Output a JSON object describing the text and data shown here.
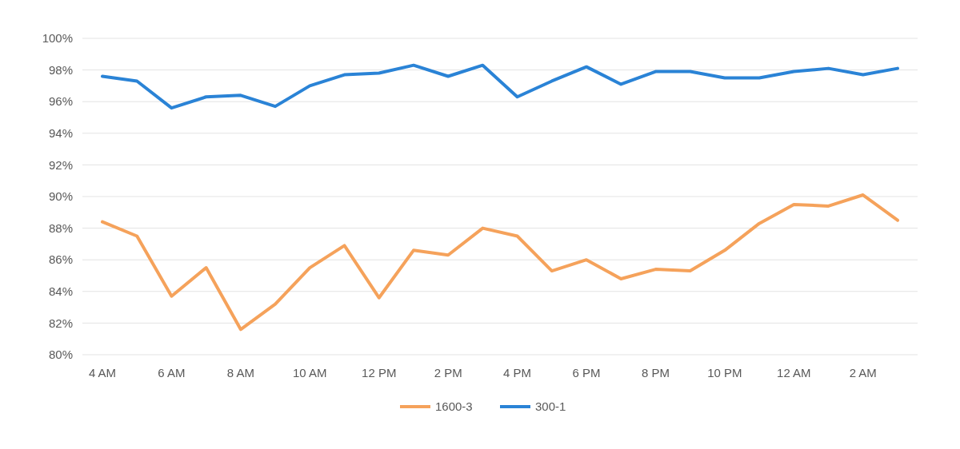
{
  "chart_data": {
    "type": "line",
    "categories": [
      "4 AM",
      null,
      "6 AM",
      null,
      "8 AM",
      null,
      "10 AM",
      null,
      "12 PM",
      null,
      "2 PM",
      null,
      "4 PM",
      null,
      "6 PM",
      null,
      "8 PM",
      null,
      "10 PM",
      null,
      "12 AM",
      null,
      "2 AM",
      null
    ],
    "series": [
      {
        "name": "1600-3",
        "color": "#f5a25b",
        "values": [
          88.4,
          87.5,
          83.7,
          85.5,
          81.6,
          83.2,
          85.5,
          86.9,
          83.6,
          86.6,
          86.3,
          88.0,
          87.5,
          85.3,
          86.0,
          84.8,
          85.4,
          85.3,
          86.6,
          88.3,
          89.5,
          89.4,
          90.1,
          88.5
        ]
      },
      {
        "name": "300-1",
        "color": "#2a83d6",
        "values": [
          97.6,
          97.3,
          95.6,
          96.3,
          96.4,
          95.7,
          97.0,
          97.7,
          97.8,
          98.3,
          97.6,
          98.3,
          96.3,
          97.3,
          98.2,
          97.1,
          97.9,
          97.9,
          97.5,
          97.5,
          97.9,
          98.1,
          97.7,
          98.1
        ]
      }
    ],
    "ylim": [
      80,
      100
    ],
    "yticks": [
      {
        "value": 80,
        "label": "80%"
      },
      {
        "value": 82,
        "label": "82%"
      },
      {
        "value": 84,
        "label": "84%"
      },
      {
        "value": 86,
        "label": "86%"
      },
      {
        "value": 88,
        "label": "88%"
      },
      {
        "value": 90,
        "label": "90%"
      },
      {
        "value": 92,
        "label": "92%"
      },
      {
        "value": 94,
        "label": "94%"
      },
      {
        "value": 96,
        "label": "96%"
      },
      {
        "value": 98,
        "label": "98%"
      },
      {
        "value": 100,
        "label": "100%"
      }
    ],
    "grid": "y",
    "legend": "bottom",
    "marker": "none",
    "line_style": "solid"
  }
}
